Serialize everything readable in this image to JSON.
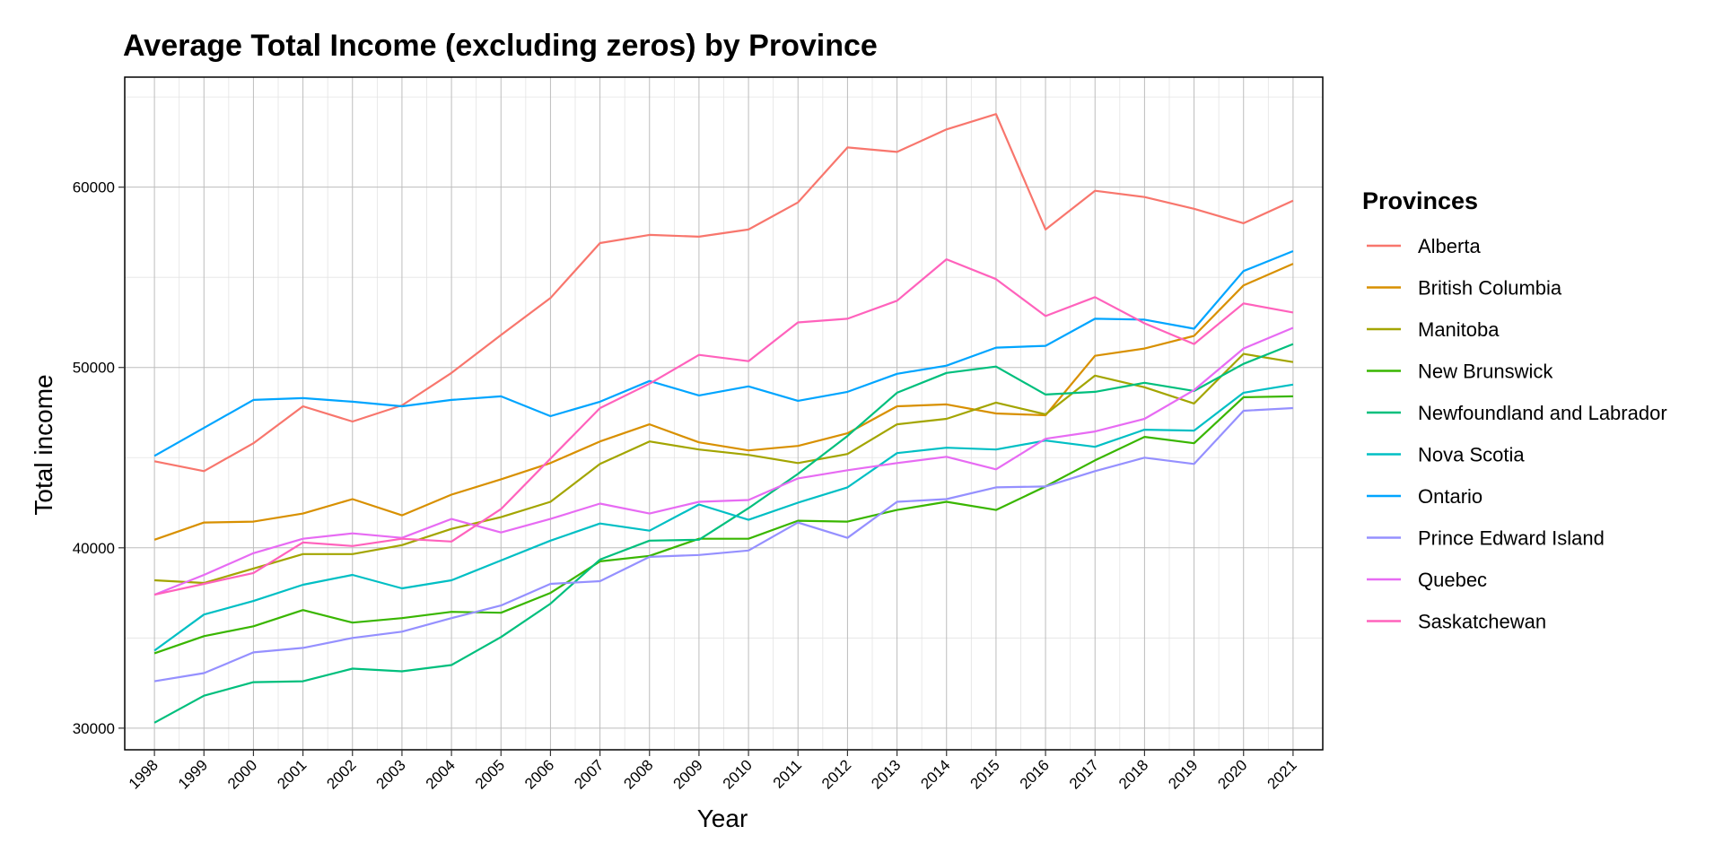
{
  "chart_data": {
    "type": "line",
    "title": "Average Total Income (excluding zeros) by Province",
    "xlabel": "Year",
    "ylabel": "Total income",
    "ylim": [
      28800,
      66100
    ],
    "yticks": [
      30000,
      40000,
      50000,
      60000
    ],
    "x": [
      1998,
      1999,
      2000,
      2001,
      2002,
      2003,
      2004,
      2005,
      2006,
      2007,
      2008,
      2009,
      2010,
      2011,
      2012,
      2013,
      2014,
      2015,
      2016,
      2017,
      2018,
      2019,
      2020,
      2021
    ],
    "grid": true,
    "legend": {
      "title": "Provinces",
      "position": "right"
    },
    "series": [
      {
        "name": "Alberta",
        "color": "#F8766D",
        "values": [
          44800,
          44250,
          45800,
          47850,
          47000,
          47900,
          49700,
          51800,
          53850,
          56900,
          57350,
          57250,
          57650,
          59150,
          62200,
          61950,
          63200,
          64050,
          57650,
          59800,
          59450,
          58800,
          58000,
          59250
        ]
      },
      {
        "name": "British Columbia",
        "color": "#D89000",
        "values": [
          40450,
          41400,
          41450,
          41900,
          42700,
          41800,
          42950,
          43800,
          44700,
          45900,
          46850,
          45850,
          45400,
          45650,
          46350,
          47850,
          47950,
          47450,
          47350,
          50650,
          51050,
          51750,
          54550,
          55750
        ]
      },
      {
        "name": "Manitoba",
        "color": "#A3A500",
        "values": [
          38200,
          38050,
          38850,
          39650,
          39650,
          40150,
          41050,
          41700,
          42550,
          44650,
          45900,
          45450,
          45150,
          44700,
          45200,
          46850,
          47150,
          48050,
          47400,
          49550,
          48900,
          48000,
          50750,
          50300
        ]
      },
      {
        "name": "New Brunswick",
        "color": "#39B600",
        "values": [
          34150,
          35100,
          35650,
          36550,
          35850,
          36100,
          36450,
          36400,
          37500,
          39250,
          39550,
          40500,
          40500,
          41500,
          41450,
          42100,
          42550,
          42100,
          43400,
          44850,
          46150,
          45800,
          48350,
          48400
        ]
      },
      {
        "name": "Newfoundland and Labrador",
        "color": "#00BF7D",
        "values": [
          30300,
          31800,
          32550,
          32600,
          33300,
          33150,
          33500,
          35050,
          36900,
          39350,
          40400,
          40450,
          42200,
          44100,
          46200,
          48600,
          49700,
          50050,
          48500,
          48650,
          49150,
          48700,
          50200,
          51300
        ]
      },
      {
        "name": "Nova Scotia",
        "color": "#00BFC4",
        "values": [
          34300,
          36300,
          37050,
          37950,
          38500,
          37750,
          38200,
          39300,
          40400,
          41350,
          40950,
          42400,
          41550,
          42500,
          43350,
          45250,
          45550,
          45450,
          45950,
          45600,
          46550,
          46500,
          48600,
          49050
        ]
      },
      {
        "name": "Ontario",
        "color": "#00A5FF",
        "values": [
          45100,
          46650,
          48200,
          48300,
          48100,
          47850,
          48200,
          48400,
          47300,
          48100,
          49250,
          48450,
          48950,
          48150,
          48650,
          49650,
          50100,
          51100,
          51200,
          52700,
          52650,
          52150,
          55350,
          56450
        ]
      },
      {
        "name": "Prince Edward Island",
        "color": "#9590FF",
        "values": [
          32600,
          33050,
          34200,
          34450,
          35000,
          35350,
          36100,
          36800,
          38000,
          38150,
          39500,
          39600,
          39850,
          41400,
          40550,
          42550,
          42700,
          43350,
          43400,
          44250,
          45000,
          44650,
          47600,
          47750
        ]
      },
      {
        "name": "Quebec",
        "color": "#E76BF3",
        "values": [
          37400,
          38500,
          39700,
          40500,
          40800,
          40550,
          41600,
          40850,
          41600,
          42450,
          41900,
          42550,
          42650,
          43850,
          44300,
          44700,
          45050,
          44350,
          46050,
          46450,
          47150,
          48750,
          51050,
          52200
        ]
      },
      {
        "name": "Saskatchewan",
        "color": "#FF62BC",
        "values": [
          37400,
          38000,
          38600,
          40300,
          40100,
          40500,
          40350,
          42150,
          44950,
          47750,
          49100,
          50700,
          50350,
          52500,
          52700,
          53700,
          56000,
          54900,
          52850,
          53900,
          52450,
          51300,
          53550,
          53050
        ]
      }
    ]
  }
}
